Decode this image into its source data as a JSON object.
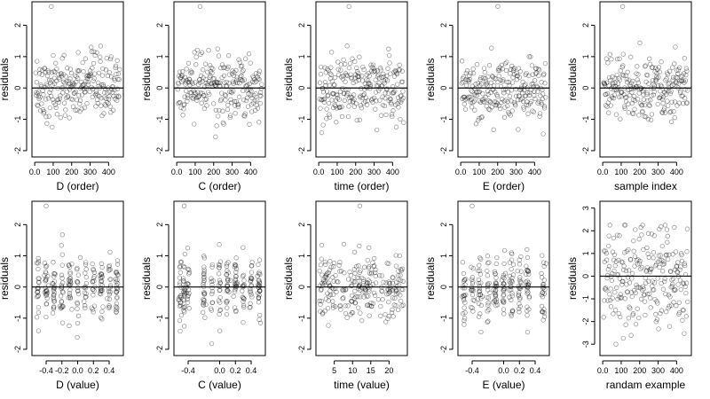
{
  "chart_data": [
    {
      "type": "scatter",
      "xlabel": "D (order)",
      "ylabel": "residuals",
      "xticks": [
        0,
        100,
        200,
        300,
        400
      ],
      "yticks": [
        -2,
        -1,
        0,
        1,
        2
      ],
      "xlim": [
        -15,
        480
      ],
      "ylim": [
        -2.2,
        2.75
      ],
      "xspec": {
        "kind": "order"
      },
      "yspec": {
        "sd": 0.5,
        "min": -1.5,
        "max": 2.6
      }
    },
    {
      "type": "scatter",
      "xlabel": "C (order)",
      "ylabel": "residuals",
      "xticks": [
        0,
        100,
        200,
        300,
        400
      ],
      "yticks": [
        -2,
        -1,
        0,
        1,
        2
      ],
      "xlim": [
        -15,
        480
      ],
      "ylim": [
        -2.2,
        2.75
      ],
      "xspec": {
        "kind": "order"
      },
      "yspec": {
        "sd": 0.5,
        "min": -2.0,
        "max": 2.6
      }
    },
    {
      "type": "scatter",
      "xlabel": "time (order)",
      "ylabel": "residuals",
      "xticks": [
        0,
        100,
        200,
        300,
        400
      ],
      "yticks": [
        -2,
        -1,
        0,
        1,
        2
      ],
      "xlim": [
        -15,
        480
      ],
      "ylim": [
        -2.2,
        2.75
      ],
      "xspec": {
        "kind": "order"
      },
      "yspec": {
        "sd": 0.5,
        "min": -2.0,
        "max": 2.6
      }
    },
    {
      "type": "scatter",
      "xlabel": "E (order)",
      "ylabel": "residuals",
      "xticks": [
        0,
        100,
        200,
        300,
        400
      ],
      "yticks": [
        -2,
        -1,
        0,
        1,
        2
      ],
      "xlim": [
        -15,
        480
      ],
      "ylim": [
        -2.2,
        2.75
      ],
      "xspec": {
        "kind": "order"
      },
      "yspec": {
        "sd": 0.5,
        "min": -2.0,
        "max": 2.6
      }
    },
    {
      "type": "scatter",
      "xlabel": "sample index",
      "ylabel": "residuals",
      "xticks": [
        0,
        100,
        200,
        300,
        400
      ],
      "yticks": [
        -2,
        -1,
        0,
        1,
        2
      ],
      "xlim": [
        -15,
        480
      ],
      "ylim": [
        -2.2,
        2.75
      ],
      "xspec": {
        "kind": "order"
      },
      "yspec": {
        "sd": 0.5,
        "min": -2.0,
        "max": 2.6
      }
    },
    {
      "type": "scatter",
      "xlabel": "D (value)",
      "ylabel": "residuals",
      "xticks": [
        -0.4,
        -0.2,
        0.0,
        0.2,
        0.4
      ],
      "yticks": [
        -2,
        -1,
        0,
        1,
        2
      ],
      "xlim": [
        -0.58,
        0.58
      ],
      "ylim": [
        -2.2,
        2.75
      ],
      "xspec": {
        "kind": "cluster",
        "centers": [
          -0.5,
          -0.4,
          -0.3,
          -0.2,
          -0.1,
          0.0,
          0.1,
          0.2,
          0.3,
          0.4,
          0.5
        ],
        "jitter": 0.01
      },
      "yspec": {
        "sd": 0.5,
        "min": -2.0,
        "max": 2.6
      }
    },
    {
      "type": "scatter",
      "xlabel": "C (value)",
      "ylabel": "residuals",
      "xticks": [
        -0.4,
        0.0,
        0.2,
        0.4
      ],
      "yticks": [
        -2,
        -1,
        0,
        1,
        2
      ],
      "xlim": [
        -0.58,
        0.58
      ],
      "ylim": [
        -2.2,
        2.75
      ],
      "xspec": {
        "kind": "cluster",
        "centers": [
          -0.5,
          -0.45,
          -0.4,
          -0.2,
          -0.1,
          0.0,
          0.1,
          0.2,
          0.3,
          0.4,
          0.5
        ],
        "jitter": 0.01
      },
      "yspec": {
        "sd": 0.5,
        "min": -2.0,
        "max": 2.6
      }
    },
    {
      "type": "scatter",
      "xlabel": "time (value)",
      "ylabel": "residuals",
      "xticks": [
        5,
        10,
        15,
        20
      ],
      "yticks": [
        -2,
        -1,
        0,
        1,
        2
      ],
      "xlim": [
        0,
        25
      ],
      "ylim": [
        -2.2,
        2.75
      ],
      "xspec": {
        "kind": "uniform",
        "from": 1,
        "to": 24
      },
      "yspec": {
        "sd": 0.5,
        "min": -2.0,
        "max": 2.6
      }
    },
    {
      "type": "scatter",
      "xlabel": "E (value)",
      "ylabel": "residuals",
      "xticks": [
        -0.4,
        0.0,
        0.2,
        0.4
      ],
      "yticks": [
        -2,
        -1,
        0,
        1,
        2
      ],
      "xlim": [
        -0.58,
        0.58
      ],
      "ylim": [
        -2.2,
        2.75
      ],
      "xspec": {
        "kind": "cluster",
        "centers": [
          -0.5,
          -0.4,
          -0.3,
          -0.2,
          -0.1,
          0.0,
          0.1,
          0.2,
          0.3,
          0.5
        ],
        "jitter": 0.012
      },
      "yspec": {
        "sd": 0.5,
        "min": -2.0,
        "max": 2.6
      }
    },
    {
      "type": "scatter",
      "xlabel": "randam example",
      "ylabel": "residuals",
      "xticks": [
        0,
        100,
        200,
        300,
        400
      ],
      "yticks": [
        -3,
        -2,
        -1,
        0,
        1,
        2,
        3
      ],
      "xlim": [
        -15,
        480
      ],
      "ylim": [
        -3.5,
        3.3
      ],
      "xspec": {
        "kind": "order"
      },
      "yspec": {
        "sd": 1.1,
        "min": -3.0,
        "max": 3.0
      }
    }
  ]
}
